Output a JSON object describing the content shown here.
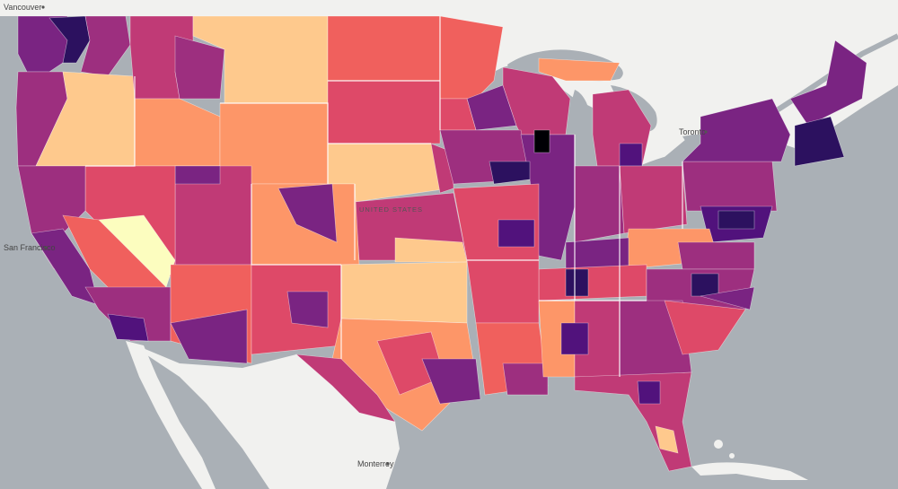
{
  "map": {
    "cities": [
      {
        "id": "vancouver",
        "name": "Vancouver"
      },
      {
        "id": "san-francisco",
        "name": "San Francisco"
      },
      {
        "id": "toronto",
        "name": "Toronto"
      },
      {
        "id": "monterrey",
        "name": "Monterrey"
      }
    ],
    "region_labels": [
      {
        "id": "united-states",
        "name": "UNITED STATES"
      }
    ],
    "colors": {
      "water": "#aab0b6",
      "land": "#f1f1ef",
      "scale": [
        "#fcfdbf",
        "#fec98d",
        "#fd9668",
        "#f0605d",
        "#de4968",
        "#c03a76",
        "#9d2f7f",
        "#7a2482",
        "#51127c",
        "#2c115f",
        "#000004"
      ]
    }
  }
}
